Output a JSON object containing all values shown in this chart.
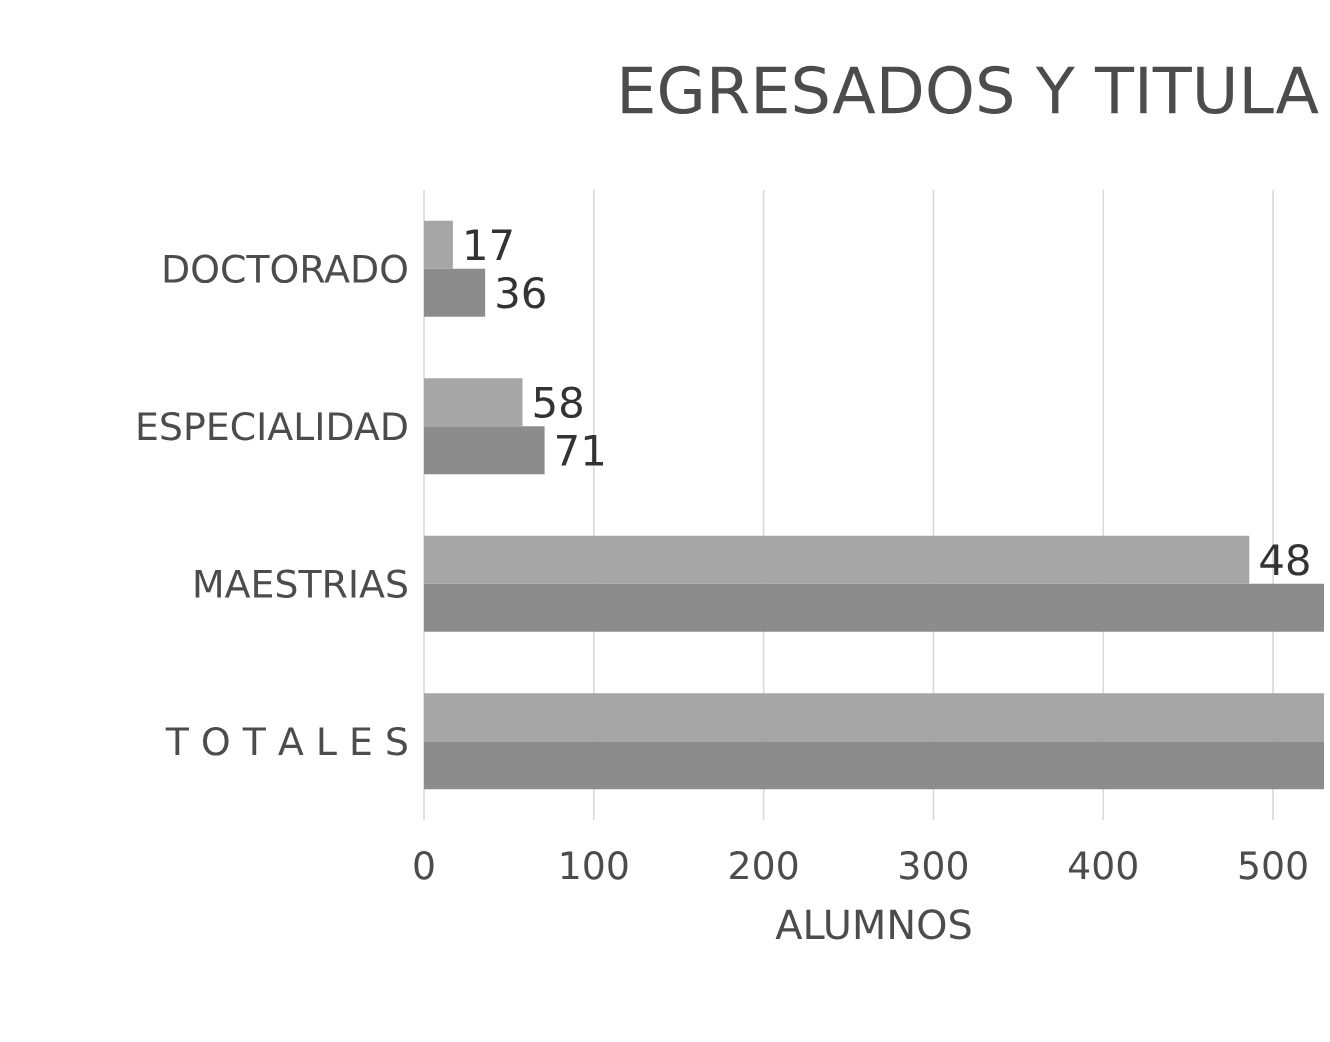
{
  "chart_data": {
    "type": "bar",
    "orientation": "horizontal",
    "title": "EGRESADOS Y TITULA",
    "xlabel": "ALUMNOS",
    "categories": [
      "DOCTORADO",
      "ESPECIALIDAD",
      "MAESTRIAS",
      "T O T A L E S"
    ],
    "series": [
      {
        "color": "#a6a6a6",
        "values": [
          17,
          58,
          486,
          530
        ],
        "value_labels": [
          "17",
          "58",
          null,
          null
        ]
      },
      {
        "color": "#8c8c8c",
        "values": [
          36,
          71,
          530,
          530
        ],
        "value_labels": [
          "36",
          "71",
          null,
          null
        ]
      }
    ],
    "xlim": [
      0,
      530
    ],
    "xticks": [
      0,
      100,
      200,
      300,
      400,
      500
    ],
    "grid": "x",
    "annotations": [
      {
        "text": "48",
        "x": 486,
        "y": "MAESTRIAS"
      }
    ]
  }
}
